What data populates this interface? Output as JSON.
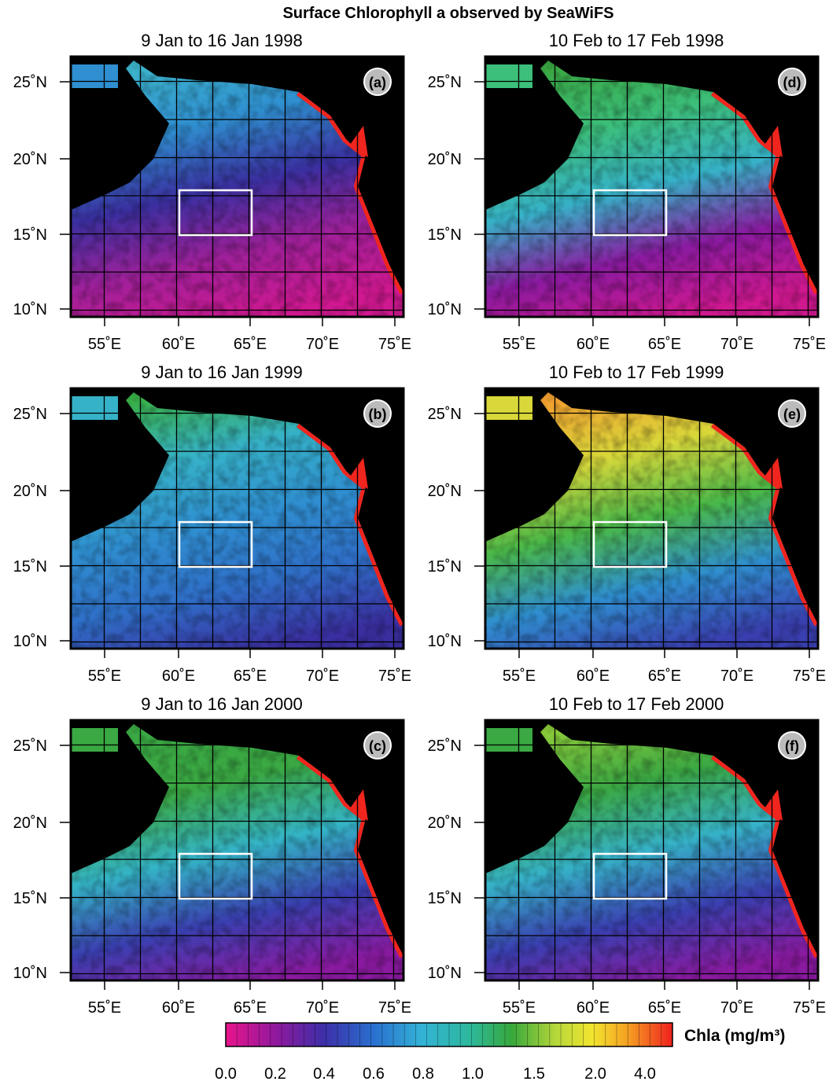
{
  "title": "Surface Chlorophyll a observed by SeaWiFS",
  "panels": [
    {
      "title": "9 Jan to 16 Jan 1998",
      "label": "(a)"
    },
    {
      "title": "9 Jan to 16 Jan 1999",
      "label": "(b)"
    },
    {
      "title": "9 Jan to 16 Jan 2000",
      "label": "(c)"
    },
    {
      "title": "10 Feb to 17 Feb 1998",
      "label": "(d)"
    },
    {
      "title": "10 Feb to 17 Feb 1999",
      "label": "(e)"
    },
    {
      "title": "10 Feb to 17 Feb 2000",
      "label": "(f)"
    }
  ],
  "lon_ticks": [
    "55˚E",
    "60˚E",
    "65˚E",
    "70˚E",
    "75˚E"
  ],
  "lat_ticks": [
    "25˚N",
    "20˚N",
    "15˚N",
    "10˚N"
  ],
  "colorbar": {
    "label": "Chla (mg/m³)",
    "ticks": [
      "0.0",
      "0.2",
      "0.4",
      "0.6",
      "0.8",
      "1.0",
      "1.5",
      "2.0",
      "4.0"
    ]
  }
}
